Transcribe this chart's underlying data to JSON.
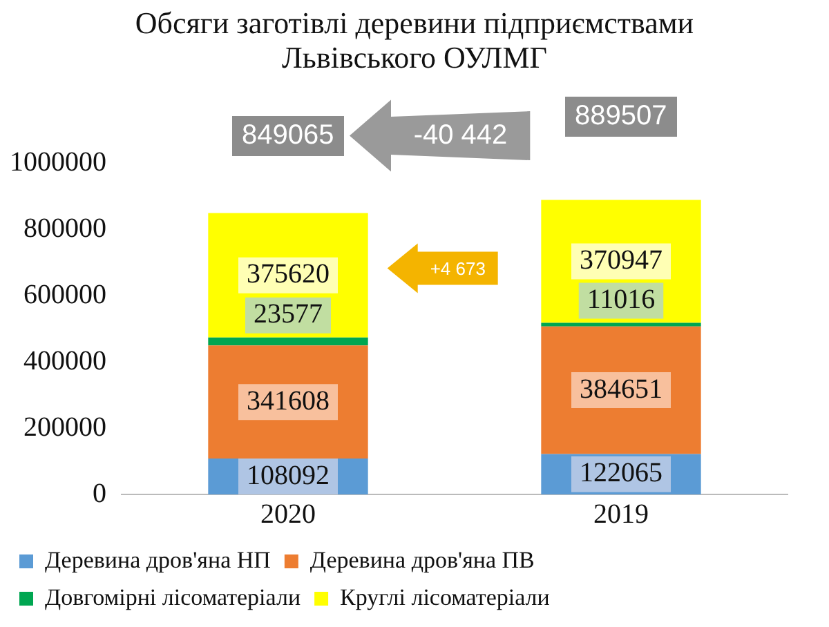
{
  "chart_data": {
    "type": "bar",
    "stacked": true,
    "title": "Обсяги заготівлі деревини підприємствами Львівського ОУЛМГ",
    "categories": [
      "2020",
      "2019"
    ],
    "series": [
      {
        "name": "Деревина дров'яна НП",
        "color": "#5b9bd5",
        "values": [
          108092,
          122065
        ]
      },
      {
        "name": "Деревина дров'яна ПВ",
        "color": "#ed7d31",
        "values": [
          341608,
          384651
        ]
      },
      {
        "name": "Довгомірні лісоматеріали",
        "color": "#00a651",
        "values": [
          23577,
          11016
        ]
      },
      {
        "name": "Круглі лісоматеріали",
        "color": "#ffff00",
        "values": [
          375620,
          370947
        ]
      }
    ],
    "ylim": [
      0,
      1000000
    ],
    "yticks": [
      0,
      200000,
      400000,
      600000,
      800000,
      1000000
    ],
    "grid": false,
    "legend": "bottom",
    "data_labels": true,
    "annotations": [
      "849065",
      "889507",
      "-40 442",
      "+4 673"
    ]
  }
}
